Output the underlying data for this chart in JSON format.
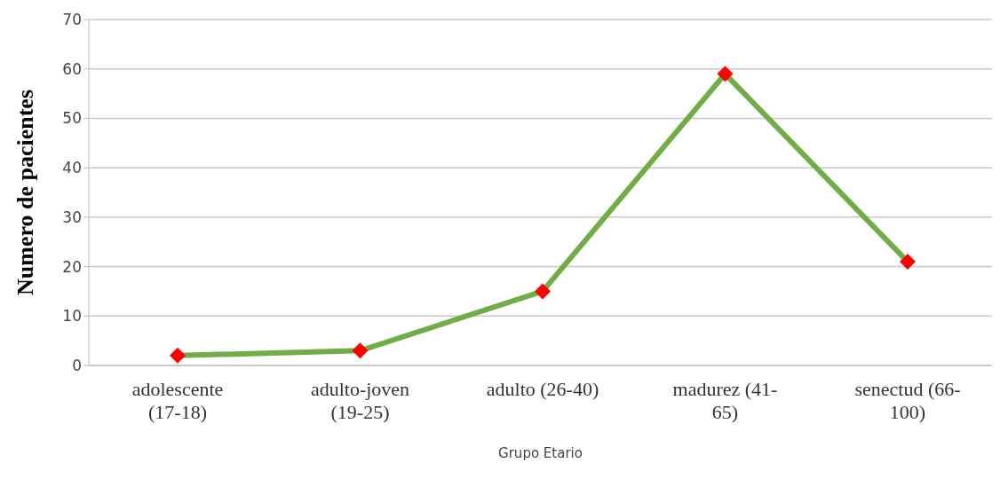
{
  "chart_data": {
    "type": "line",
    "xlabel": "Grupo Etario",
    "ylabel": "Numero de pacientes",
    "categories": [
      "adolescente (17-18)",
      "adulto-joven (19-25)",
      "adulto (26-40)",
      "madurez (41-65)",
      "senectud (66-100)"
    ],
    "series": [
      {
        "color": "#70ad47",
        "colors": [
          "#ff0000",
          "#ff0000",
          "#ff0000",
          "#ff0000",
          "#ff0000"
        ],
        "values": [
          2,
          3,
          15,
          59,
          21
        ]
      }
    ],
    "ylim": [
      0,
      70
    ],
    "yticks": [
      0,
      10,
      20,
      30,
      40,
      50,
      60,
      70
    ],
    "grid": "y",
    "legend": false,
    "marker": "diamond",
    "line_style": "solid"
  }
}
